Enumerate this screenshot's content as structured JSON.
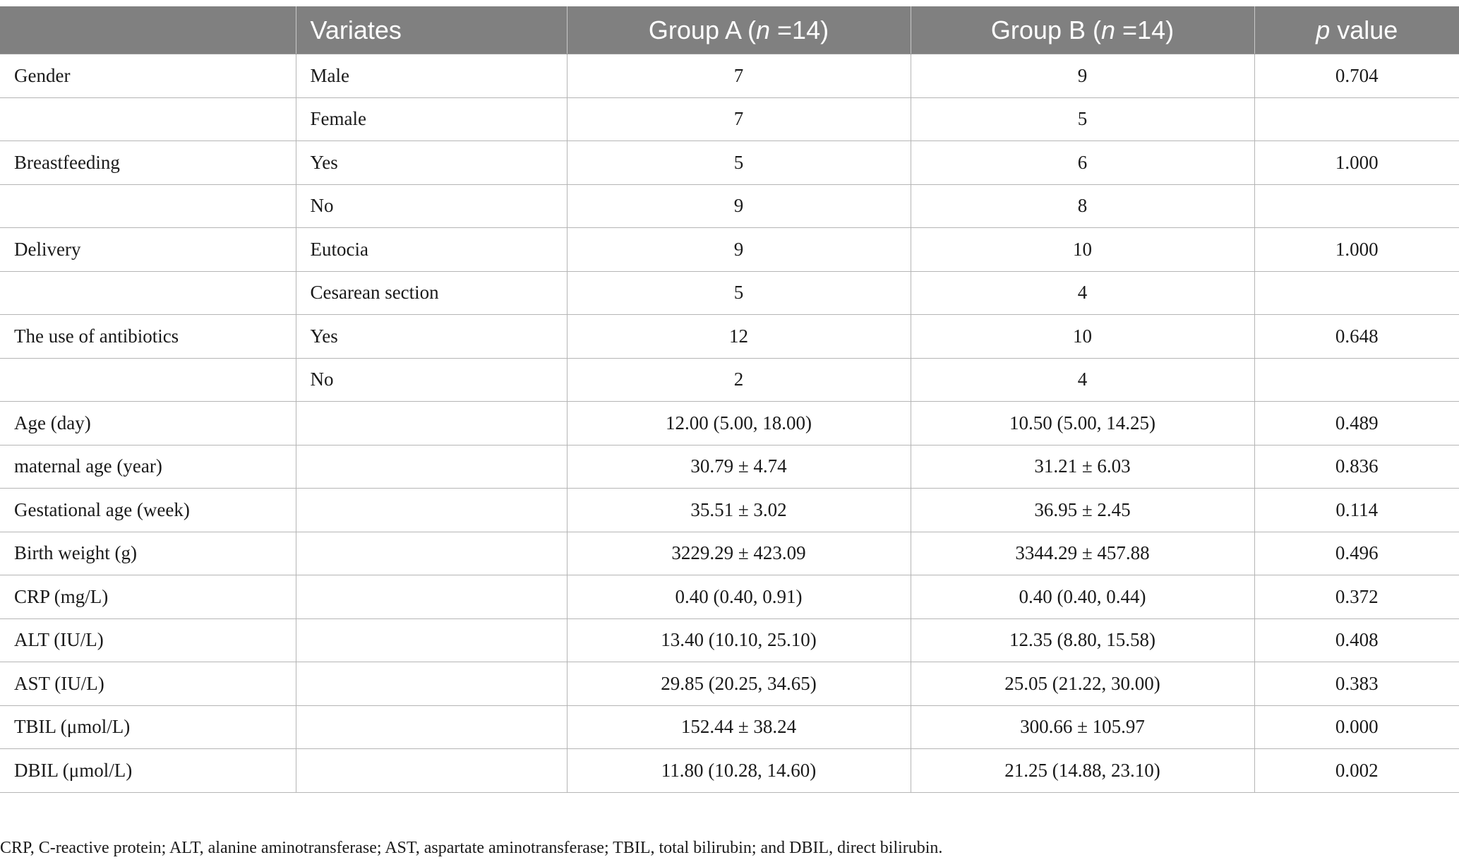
{
  "table": {
    "headers": {
      "blank": "",
      "variates": "Variates",
      "group_a_prefix": "Group A (",
      "group_a_n": "n",
      "group_a_suffix": " =14)",
      "group_b_prefix": "Group B (",
      "group_b_n": "n",
      "group_b_suffix": " =14)",
      "p_italic": "p",
      "p_suffix": " value"
    },
    "rows": [
      {
        "variable": "Gender",
        "variate": "Male",
        "group_a": "7",
        "group_b": "9",
        "p_value": "0.704"
      },
      {
        "variable": "",
        "variate": "Female",
        "group_a": "7",
        "group_b": "5",
        "p_value": ""
      },
      {
        "variable": "Breastfeeding",
        "variate": "Yes",
        "group_a": "5",
        "group_b": "6",
        "p_value": "1.000"
      },
      {
        "variable": "",
        "variate": "No",
        "group_a": "9",
        "group_b": "8",
        "p_value": ""
      },
      {
        "variable": "Delivery",
        "variate": "Eutocia",
        "group_a": "9",
        "group_b": "10",
        "p_value": "1.000"
      },
      {
        "variable": "",
        "variate": "Cesarean section",
        "group_a": "5",
        "group_b": "4",
        "p_value": ""
      },
      {
        "variable": "The use of antibiotics",
        "variate": "Yes",
        "group_a": "12",
        "group_b": "10",
        "p_value": "0.648"
      },
      {
        "variable": "",
        "variate": "No",
        "group_a": "2",
        "group_b": "4",
        "p_value": ""
      },
      {
        "variable": "Age (day)",
        "variate": "",
        "group_a": "12.00 (5.00, 18.00)",
        "group_b": "10.50 (5.00, 14.25)",
        "p_value": "0.489"
      },
      {
        "variable": "maternal age (year)",
        "variate": "",
        "group_a": "30.79 ± 4.74",
        "group_b": "31.21 ± 6.03",
        "p_value": "0.836"
      },
      {
        "variable": "Gestational age (week)",
        "variate": "",
        "group_a": "35.51 ± 3.02",
        "group_b": "36.95 ± 2.45",
        "p_value": "0.114"
      },
      {
        "variable": "Birth weight (g)",
        "variate": "",
        "group_a": "3229.29 ± 423.09",
        "group_b": "3344.29 ± 457.88",
        "p_value": "0.496"
      },
      {
        "variable": "CRP (mg/L)",
        "variate": "",
        "group_a": "0.40 (0.40, 0.91)",
        "group_b": "0.40 (0.40, 0.44)",
        "p_value": "0.372"
      },
      {
        "variable": "ALT (IU/L)",
        "variate": "",
        "group_a": "13.40 (10.10, 25.10)",
        "group_b": "12.35 (8.80, 15.58)",
        "p_value": "0.408"
      },
      {
        "variable": "AST (IU/L)",
        "variate": "",
        "group_a": "29.85 (20.25, 34.65)",
        "group_b": "25.05 (21.22, 30.00)",
        "p_value": "0.383"
      },
      {
        "variable": "TBIL (μmol/L)",
        "variate": "",
        "group_a": "152.44 ± 38.24",
        "group_b": "300.66 ± 105.97",
        "p_value": "0.000"
      },
      {
        "variable": "DBIL (μmol/L)",
        "variate": "",
        "group_a": "11.80 (10.28, 14.60)",
        "group_b": "21.25 (14.88, 23.10)",
        "p_value": "0.002"
      }
    ]
  },
  "footnote": "CRP, C-reactive protein; ALT, alanine aminotransferase; AST, aspartate aminotransferase; TBIL, total bilirubin; and DBIL, direct bilirubin.",
  "colors": {
    "header_bg": "#808080",
    "header_text": "#ffffff",
    "grid_line": "#b5b5b5",
    "body_text": "#1a1a1a"
  }
}
